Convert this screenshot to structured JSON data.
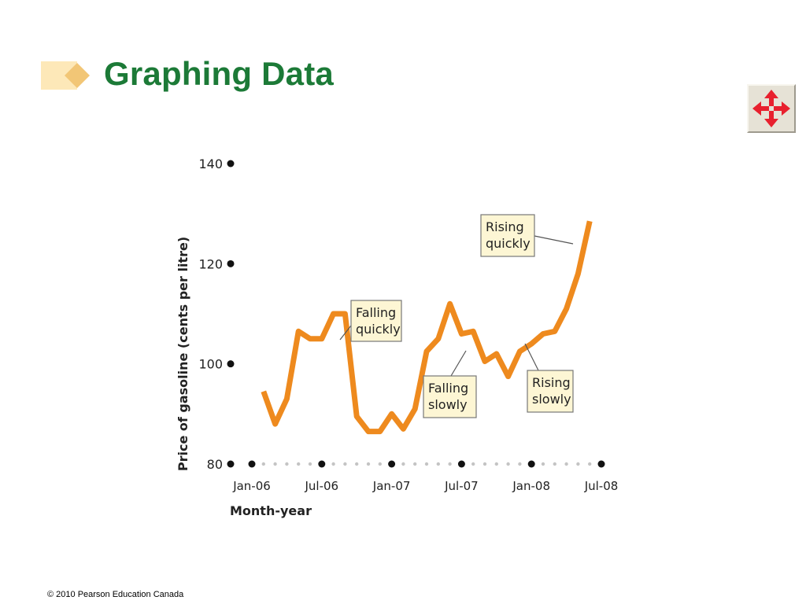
{
  "slide": {
    "title": "Graphing Data",
    "footer": "© 2010 Pearson Education Canada",
    "accent_color": "#1c7a37",
    "nav_icon": "four-way-arrows-icon"
  },
  "chart_data": {
    "type": "line",
    "title": "",
    "xlabel": "Month-year",
    "ylabel": "Price of gasoline (cents per litre)",
    "ylim": [
      80,
      140
    ],
    "yticks": [
      80,
      100,
      120,
      140
    ],
    "xtick_labels": [
      "Jan-06",
      "Jul-06",
      "Jan-07",
      "Jul-07",
      "Jan-08",
      "Jul-08"
    ],
    "grid": false,
    "line_color": "#ee8a1e",
    "x": [
      "Feb-06",
      "Mar-06",
      "Apr-06",
      "May-06",
      "Jun-06",
      "Jul-06",
      "Aug-06",
      "Sep-06",
      "Oct-06",
      "Nov-06",
      "Dec-06",
      "Jan-07",
      "Feb-07",
      "Mar-07",
      "Apr-07",
      "May-07",
      "Jun-07",
      "Jul-07",
      "Aug-07",
      "Sep-07",
      "Oct-07",
      "Nov-07",
      "Dec-07",
      "Jan-08",
      "Feb-08",
      "Mar-08",
      "Apr-08",
      "May-08",
      "Jun-08"
    ],
    "values": [
      94.5,
      88,
      93,
      106.5,
      105,
      105,
      110,
      110,
      89.5,
      86.5,
      86.5,
      90,
      87,
      91,
      102.5,
      105,
      112,
      106,
      106.5,
      100.5,
      102,
      97.5,
      102.5,
      104,
      106,
      106.5,
      111,
      118,
      128.5
    ],
    "annotations": [
      {
        "text": [
          "Falling",
          "quickly"
        ]
      },
      {
        "text": [
          "Rising",
          "quickly"
        ]
      },
      {
        "text": [
          "Falling",
          "slowly"
        ]
      },
      {
        "text": [
          "Rising",
          "slowly"
        ]
      }
    ]
  }
}
